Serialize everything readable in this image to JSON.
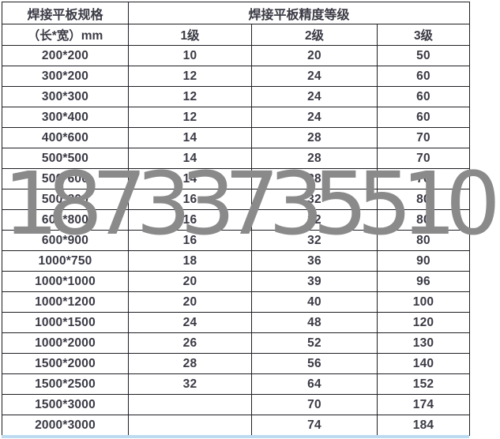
{
  "watermark": {
    "text": "18733735510",
    "color": "#8a8a8a"
  },
  "colors": {
    "border": "#1e1e24",
    "text": "#3a3a45",
    "watermark": "#8a8a8a",
    "bottom_bar": "#bcdaf0"
  },
  "chart_data": {
    "type": "table",
    "title": "焊接平板规格 / 焊接平板精度等级",
    "group_headers": [
      "焊接平板规格",
      "焊接平板精度等级"
    ],
    "columns": [
      "（长*宽）mm",
      "1级",
      "2级",
      "3级"
    ],
    "rows": [
      [
        "200*200",
        "10",
        "20",
        "50"
      ],
      [
        "300*200",
        "12",
        "24",
        "60"
      ],
      [
        "300*300",
        "12",
        "24",
        "60"
      ],
      [
        "300*400",
        "12",
        "24",
        "60"
      ],
      [
        "400*600",
        "14",
        "28",
        "70"
      ],
      [
        "500*500",
        "14",
        "28",
        "70"
      ],
      [
        "500*600",
        "14",
        "28",
        "70"
      ],
      [
        "500*800",
        "16",
        "32",
        "80"
      ],
      [
        "600*800",
        "16",
        "32",
        "80"
      ],
      [
        "600*900",
        "16",
        "32",
        "80"
      ],
      [
        "1000*750",
        "18",
        "36",
        "90"
      ],
      [
        "1000*1000",
        "20",
        "39",
        "96"
      ],
      [
        "1000*1200",
        "20",
        "40",
        "100"
      ],
      [
        "1000*1500",
        "24",
        "48",
        "120"
      ],
      [
        "1000*2000",
        "26",
        "52",
        "130"
      ],
      [
        "1500*2000",
        "28",
        "56",
        "140"
      ],
      [
        "1500*2500",
        "32",
        "64",
        "152"
      ],
      [
        "1500*3000",
        "",
        "70",
        "174"
      ],
      [
        "2000*3000",
        "",
        "74",
        "184"
      ]
    ]
  }
}
